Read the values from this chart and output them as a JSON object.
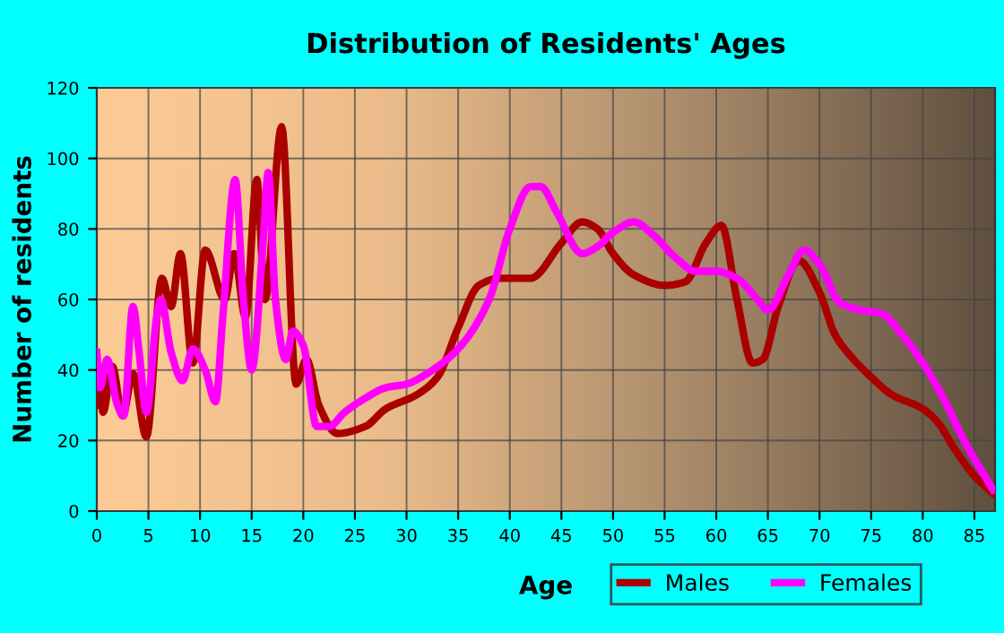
{
  "chart_data": {
    "type": "line",
    "title": "Distribution of Residents' Ages",
    "xlabel": "Age",
    "ylabel": "Number of residents",
    "xlim": [
      0,
      87
    ],
    "xticks": [
      0,
      5,
      10,
      15,
      20,
      25,
      30,
      35,
      40,
      45,
      50,
      55,
      60,
      65,
      70,
      75,
      80,
      85
    ],
    "ylim": [
      0,
      120
    ],
    "yticks": [
      0,
      20,
      40,
      60,
      80,
      100,
      120
    ],
    "grid": true,
    "legend": "bottom right",
    "marker": "none",
    "line_style": "solid",
    "series": [
      {
        "name": "Males",
        "color": "#aa0000",
        "x": [
          0,
          0.3,
          0.6,
          1.5,
          2.5,
          3.5,
          4.8,
          6.3,
          7.2,
          8.1,
          9.3,
          10.5,
          12.4,
          13.3,
          14.4,
          15.5,
          16.3,
          17.9,
          19.3,
          20.3,
          21.5,
          23.3,
          26,
          28,
          31,
          33,
          35,
          37,
          39,
          42,
          45,
          47,
          48.5,
          50,
          52,
          55,
          57,
          59,
          60.5,
          62,
          63.5,
          64.5,
          66,
          68,
          70,
          71.5,
          73,
          75,
          77,
          80,
          81.5,
          83,
          85,
          86.8
        ],
        "values": [
          30,
          40,
          28,
          41,
          27,
          39,
          21,
          66,
          58,
          73,
          42,
          74,
          60,
          73,
          55,
          94,
          60,
          109,
          36,
          43,
          30,
          22,
          24,
          29,
          33,
          38,
          52,
          64,
          66,
          66,
          76,
          82,
          80,
          73,
          67,
          64,
          65,
          76,
          81,
          60,
          42,
          43,
          58,
          71,
          62,
          50,
          44,
          38,
          33,
          29,
          25,
          18,
          10,
          5
        ]
      },
      {
        "name": "Females",
        "color": "#ff00ff",
        "x": [
          0,
          0.3,
          1,
          2,
          2.6,
          3.5,
          4.1,
          4.8,
          5.8,
          6.2,
          7.2,
          8.3,
          9.3,
          10.5,
          11.5,
          12.2,
          13.4,
          14.2,
          15,
          16.1,
          16.6,
          17.3,
          18.3,
          19,
          20,
          21.3,
          22.5,
          24,
          26,
          28,
          30,
          32,
          35,
          38,
          40,
          42,
          43,
          44.5,
          47,
          48.5,
          50,
          52,
          54,
          56,
          58,
          60,
          62,
          64,
          65,
          67,
          68.5,
          70,
          72,
          74,
          76,
          78,
          80,
          82,
          84,
          86.8
        ],
        "values": [
          45,
          35,
          43,
          30,
          27,
          58,
          45,
          28,
          55,
          60,
          45,
          37,
          46,
          40,
          31,
          55,
          94,
          60,
          40,
          76,
          96,
          60,
          43,
          51,
          47,
          24,
          24,
          28,
          32,
          35,
          36,
          39,
          46,
          60,
          80,
          92,
          92,
          85,
          73,
          75,
          79,
          82,
          78,
          72,
          68,
          68,
          66,
          60,
          57,
          67,
          74,
          70,
          59,
          57,
          56,
          50,
          42,
          32,
          20,
          6
        ]
      }
    ]
  }
}
